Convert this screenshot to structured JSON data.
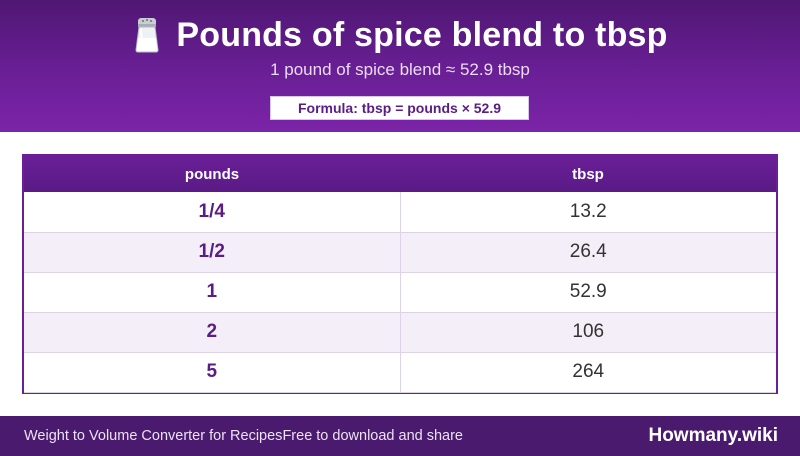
{
  "header": {
    "icon": "salt-shaker-icon",
    "title": "Pounds of spice blend to tbsp",
    "subtitle": "1 pound of spice blend ≈ 52.9 tbsp",
    "formula": "Formula: tbsp = pounds × 52.9"
  },
  "table": {
    "columns": [
      "pounds",
      "tbsp"
    ],
    "rows": [
      {
        "pounds": "1/4",
        "tbsp": "13.2"
      },
      {
        "pounds": "1/2",
        "tbsp": "26.4"
      },
      {
        "pounds": "1",
        "tbsp": "52.9"
      },
      {
        "pounds": "2",
        "tbsp": "106"
      },
      {
        "pounds": "5",
        "tbsp": "264"
      }
    ]
  },
  "footer": {
    "converter_name": "Weight to Volume Converter for Recipes",
    "tagline": "Free to download and share",
    "brand": "Howmany.wiki"
  },
  "colors": {
    "header_purple": "#6a1f96",
    "footer_purple": "#4a1a6e",
    "accent_text": "#5a1d86"
  }
}
